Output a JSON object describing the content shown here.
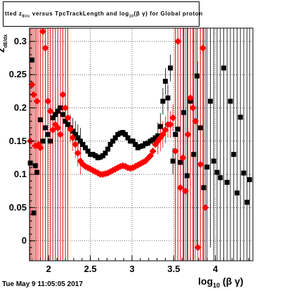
{
  "title": {
    "prefix": "tted  z",
    "sub1": "Bilc",
    "middle": " versus TpcTrackLength and log",
    "sub2": "10",
    "suffix": "(β γ) for Global proton"
  },
  "footer": {
    "timestamp": "Tue May  9 11:05:05 2017"
  },
  "axes": {
    "xlabel_main": "log",
    "xlabel_sub": "10",
    "xlabel_tail": " (β γ)",
    "ylabel_main": "z",
    "ylabel_sub": "dE/dx"
  },
  "colors": {
    "series_black": "#000000",
    "series_red": "#ff0000",
    "frame": "#000000"
  },
  "chart_data": {
    "type": "scatter",
    "xlim": [
      1.77,
      4.45
    ],
    "ylim": [
      -0.03,
      0.32
    ],
    "xticks": [
      2,
      2.5,
      3,
      3.5,
      4
    ],
    "xtick_labels": [
      "2",
      "2.5",
      "3",
      "3.5",
      "4"
    ],
    "yticks": [
      0,
      0.05,
      0.1,
      0.15,
      0.2,
      0.25,
      0.3
    ],
    "ytick_labels": [
      "0",
      "0.05",
      "0.1",
      "0.15",
      "0.2",
      "0.25",
      "0.3"
    ],
    "grid": true,
    "series": [
      {
        "color": "#000000",
        "x": [
          1.78,
          1.8,
          1.82,
          1.84,
          1.86,
          1.9,
          1.93,
          1.96,
          1.99,
          2.02,
          2.05,
          2.08,
          2.11,
          2.14,
          2.17,
          2.2,
          2.23,
          2.26,
          2.29,
          2.32,
          2.35,
          2.38,
          2.41,
          2.44,
          2.47,
          2.5,
          2.53,
          2.56,
          2.59,
          2.62,
          2.65,
          2.68,
          2.71,
          2.74,
          2.77,
          2.8,
          2.83,
          2.86,
          2.89,
          2.92,
          2.95,
          2.98,
          3.01,
          3.04,
          3.07,
          3.1,
          3.13,
          3.16,
          3.19,
          3.22,
          3.25,
          3.28,
          3.31,
          3.34,
          3.37,
          3.4,
          3.43,
          3.46,
          3.49,
          3.52,
          3.55,
          3.58,
          3.62,
          3.66,
          3.7,
          3.74,
          3.78,
          3.82,
          3.86,
          3.9,
          3.94,
          3.98,
          4.02,
          4.06,
          4.1,
          4.14,
          4.18,
          4.22,
          4.26,
          4.3,
          4.34,
          4.38,
          4.41
        ],
        "y": [
          0.117,
          0.272,
          0.042,
          0.113,
          0.103,
          0.182,
          0.15,
          0.17,
          0.16,
          0.15,
          0.185,
          0.19,
          0.195,
          0.2,
          0.19,
          0.18,
          0.175,
          0.17,
          0.165,
          0.16,
          0.155,
          0.15,
          0.145,
          0.14,
          0.135,
          0.13,
          0.13,
          0.128,
          0.125,
          0.126,
          0.128,
          0.132,
          0.138,
          0.145,
          0.15,
          0.155,
          0.16,
          0.162,
          0.163,
          0.16,
          0.155,
          0.15,
          0.15,
          0.145,
          0.14,
          0.142,
          0.143,
          0.146,
          0.147,
          0.15,
          0.152,
          0.155,
          0.158,
          0.172,
          0.21,
          0.24,
          0.215,
          0.26,
          0.12,
          0.16,
          0.168,
          0.118,
          0.193,
          0.098,
          0.21,
          0.13,
          0.248,
          0.17,
          0.08,
          0.111,
          0.21,
          0.12,
          0.103,
          0.095,
          0.26,
          0.088,
          0.21,
          0.13,
          0.072,
          0.186,
          0.102,
          0.058,
          0.092
        ]
      },
      {
        "color": "#ff0000",
        "x": [
          1.78,
          1.8,
          1.82,
          1.84,
          1.86,
          1.88,
          1.9,
          1.93,
          1.96,
          1.99,
          2.02,
          2.05,
          2.08,
          2.11,
          2.14,
          2.17,
          2.2,
          2.23,
          2.26,
          2.29,
          2.32,
          2.35,
          2.38,
          2.41,
          2.44,
          2.47,
          2.5,
          2.53,
          2.56,
          2.59,
          2.62,
          2.65,
          2.68,
          2.71,
          2.74,
          2.77,
          2.8,
          2.83,
          2.86,
          2.89,
          2.92,
          2.95,
          2.98,
          3.01,
          3.04,
          3.07,
          3.1,
          3.13,
          3.16,
          3.19,
          3.22,
          3.25,
          3.28,
          3.31,
          3.34,
          3.37,
          3.4,
          3.43,
          3.46,
          3.49,
          3.52,
          3.55,
          3.58,
          3.61,
          3.64,
          3.67,
          3.7,
          3.73,
          3.76,
          3.79,
          3.82,
          3.85,
          3.88
        ],
        "y": [
          0.15,
          0.235,
          0.22,
          0.143,
          0.21,
          0.145,
          0.14,
          0.315,
          0.29,
          0.21,
          0.195,
          0.167,
          0.175,
          0.17,
          0.16,
          0.22,
          0.2,
          0.185,
          0.168,
          0.155,
          0.145,
          0.132,
          0.12,
          0.115,
          0.112,
          0.11,
          0.108,
          0.106,
          0.104,
          0.102,
          0.1,
          0.1,
          0.101,
          0.102,
          0.104,
          0.106,
          0.108,
          0.11,
          0.112,
          0.113,
          0.112,
          0.11,
          0.109,
          0.11,
          0.112,
          0.114,
          0.116,
          0.118,
          0.12,
          0.124,
          0.128,
          0.135,
          0.145,
          0.15,
          0.155,
          0.16,
          0.167,
          0.175,
          0.175,
          0.185,
          0.135,
          0.3,
          0.08,
          0.125,
          0.075,
          0.16,
          0.215,
          0.2,
          0.18,
          -0.01,
          0.115,
          0.29,
          0.05
        ]
      }
    ]
  }
}
